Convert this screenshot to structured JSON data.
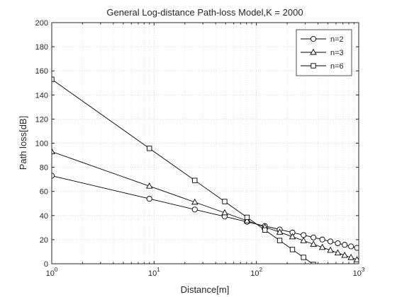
{
  "chart_data": {
    "type": "line",
    "title": "General Log-distance Path-loss Model,K = 2000",
    "xlabel": "Distance[m]",
    "ylabel": "Path loss[dB]",
    "xscale": "log",
    "xlim": [
      1,
      1000
    ],
    "ylim": [
      0,
      200
    ],
    "xticks": [
      {
        "base": "10",
        "exp": "0"
      },
      {
        "base": "10",
        "exp": "1"
      },
      {
        "base": "10",
        "exp": "2"
      },
      {
        "base": "10",
        "exp": "3"
      }
    ],
    "yticks": [
      "0",
      "20",
      "40",
      "60",
      "80",
      "100",
      "120",
      "140",
      "160",
      "180",
      "200"
    ],
    "grid": true,
    "legend_position": "top-right",
    "line_color": "#000000",
    "series": [
      {
        "name": "n=2",
        "marker": "circle",
        "x": [
          1,
          9,
          25,
          49,
          81,
          121,
          169,
          225,
          289,
          361,
          441,
          529,
          625,
          729,
          841,
          961
        ],
        "y": [
          73.0,
          53.9,
          45.0,
          39.2,
          34.8,
          31.3,
          28.4,
          25.9,
          23.8,
          21.8,
          20.1,
          18.5,
          17.0,
          15.7,
          14.4,
          13.2
        ]
      },
      {
        "name": "n=3",
        "marker": "triangle",
        "x": [
          1,
          9,
          25,
          49,
          81,
          121,
          169,
          225,
          289,
          361,
          441,
          529,
          625,
          729,
          841,
          961
        ],
        "y": [
          93.0,
          64.4,
          51.1,
          42.3,
          35.7,
          30.5,
          26.2,
          22.4,
          19.2,
          16.2,
          13.6,
          11.2,
          9.0,
          7.0,
          5.2,
          3.4
        ]
      },
      {
        "name": "n=6",
        "marker": "square",
        "x": [
          1,
          9,
          25,
          49,
          81,
          121,
          169,
          225,
          289,
          361
        ],
        "y": [
          153.0,
          95.7,
          69.1,
          51.6,
          38.5,
          28.0,
          19.3,
          11.8,
          5.3,
          -0.6
        ]
      }
    ]
  }
}
